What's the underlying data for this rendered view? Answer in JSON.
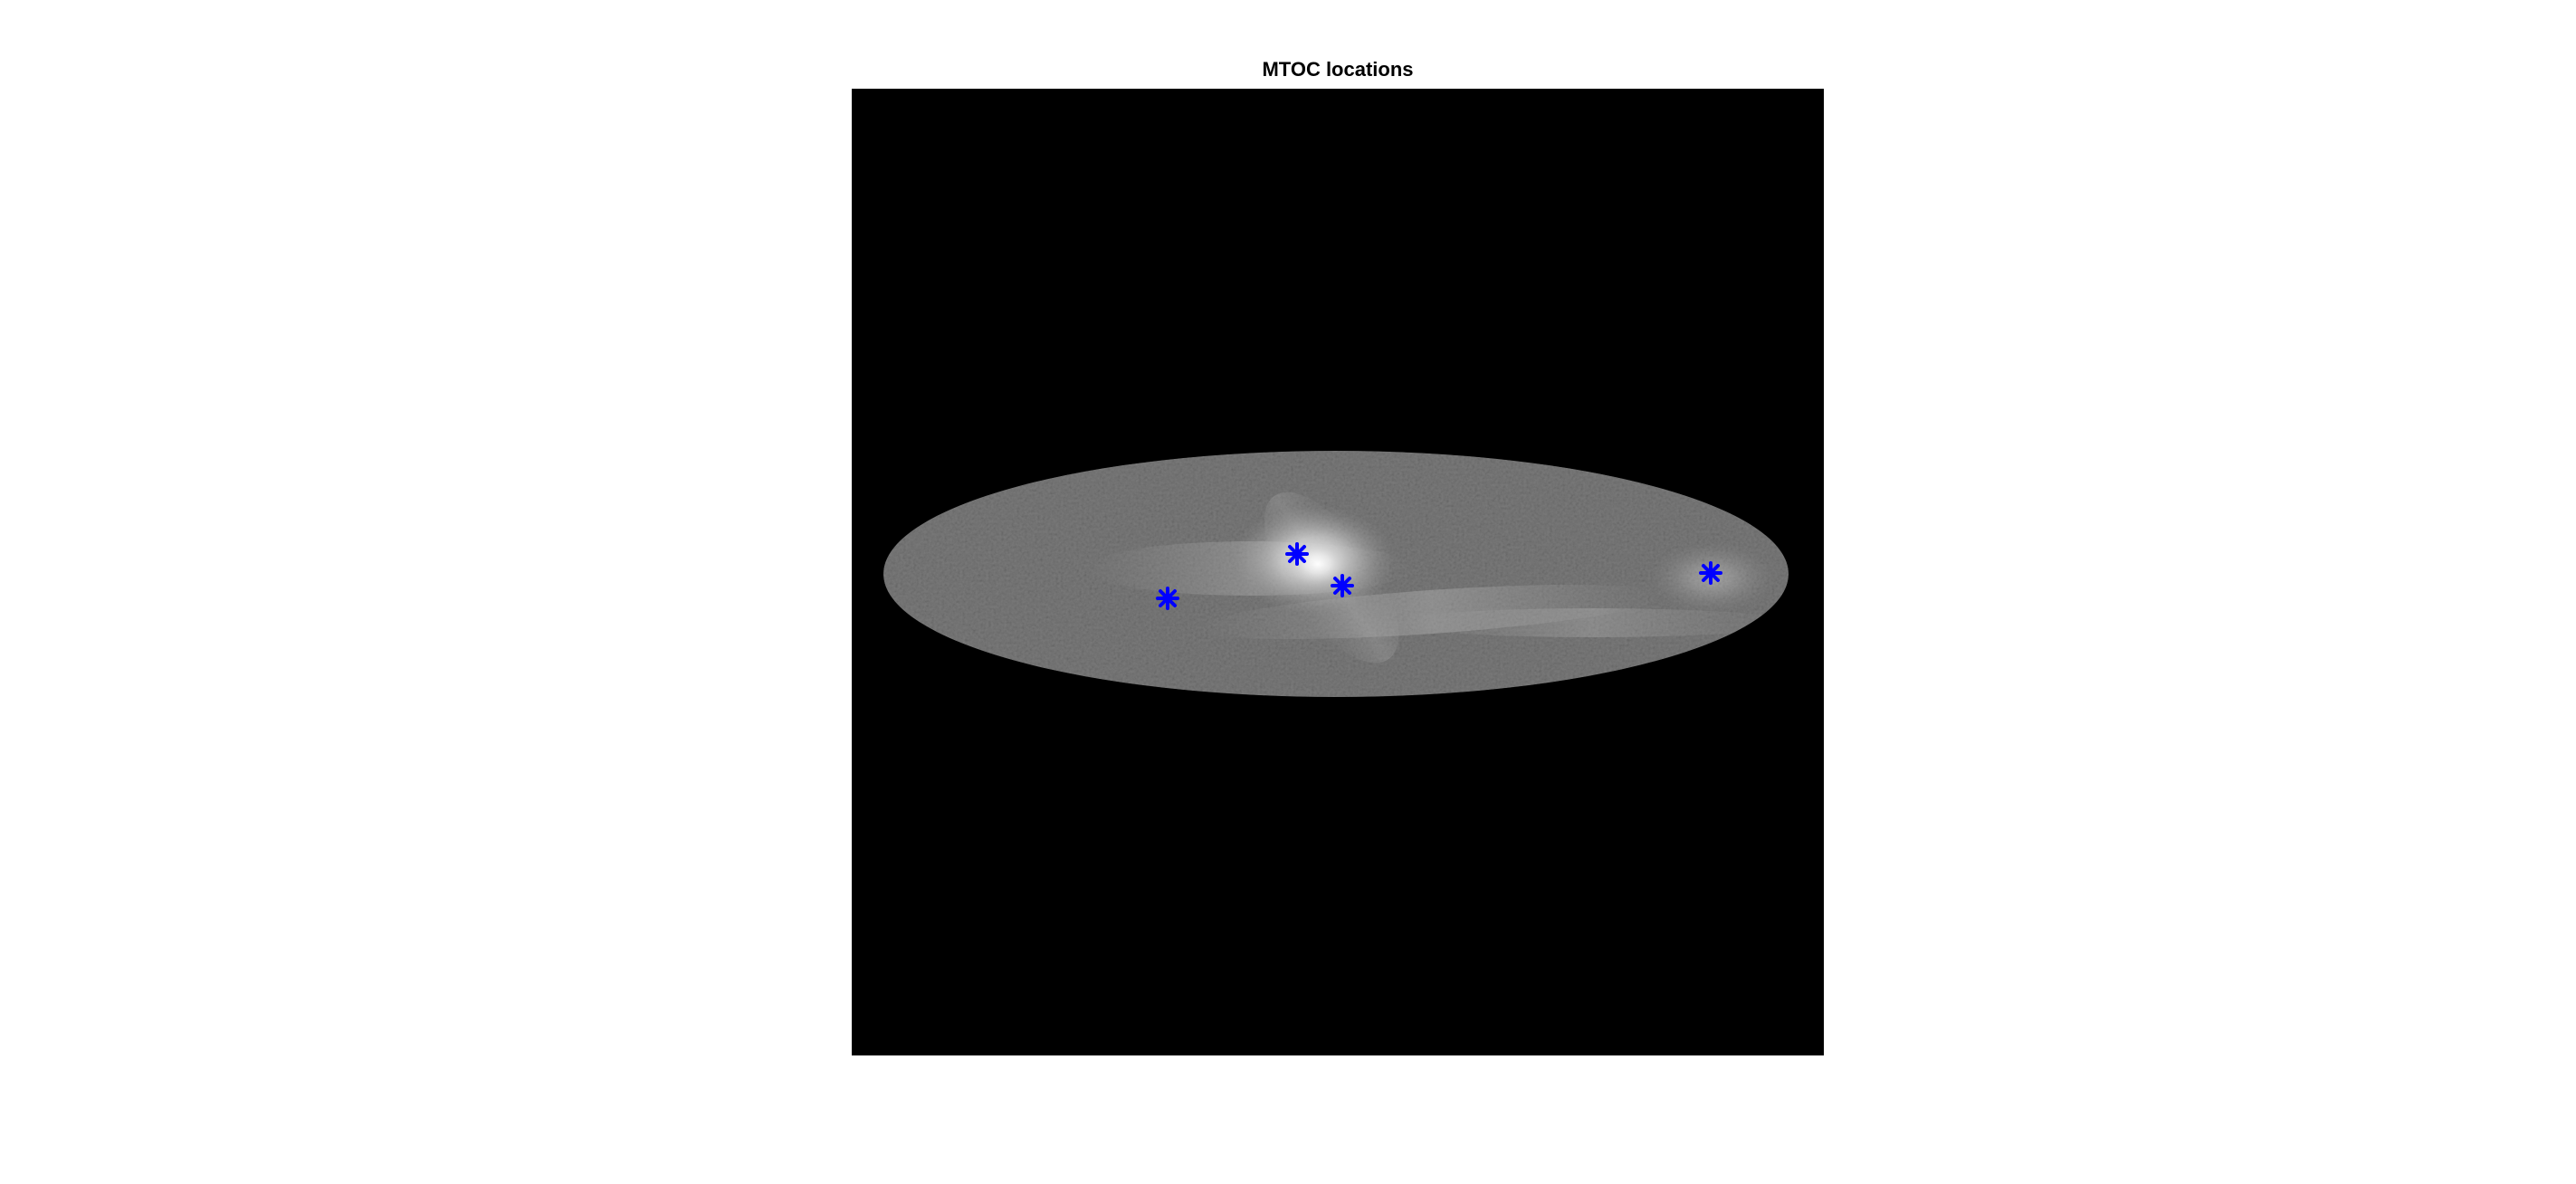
{
  "figure": {
    "title": "MTOC locations",
    "background": "#ffffff",
    "image_background": "#000000",
    "cell_color": "#7a7a7a",
    "marker_color": "#0000ff",
    "marker_symbol": "asterisk",
    "marker_count": 4
  }
}
